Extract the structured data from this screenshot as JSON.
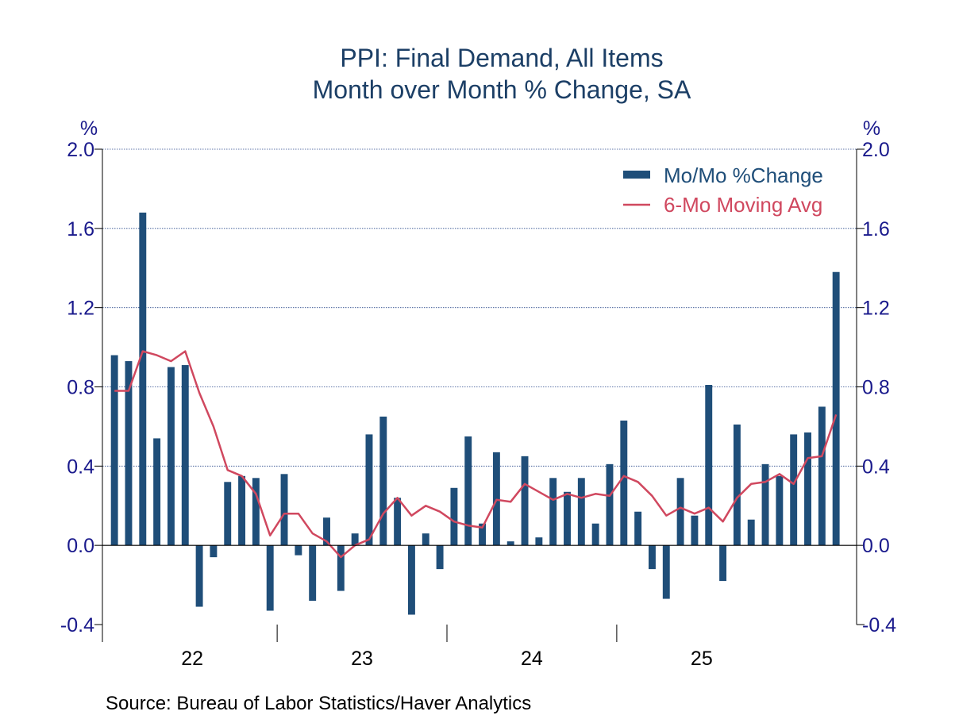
{
  "chart_data": {
    "type": "bar",
    "title": "PPI: Final Demand, All Items",
    "subtitle": "Month over Month % Change, SA",
    "y_unit_left": "%",
    "y_unit_right": "%",
    "ylim": [
      -0.4,
      2.0
    ],
    "yticks": [
      "2.0",
      "1.6",
      "1.2",
      "0.8",
      "0.4",
      "0.0",
      "-0.4"
    ],
    "ytick_values": [
      2.0,
      1.6,
      1.2,
      0.8,
      0.4,
      0.0,
      -0.4
    ],
    "xtick_labels": [
      "22",
      "23",
      "24",
      "25"
    ],
    "grid": true,
    "legend_position": "top-right",
    "colors": {
      "bars": "#1f4e79",
      "line": "#d0485f",
      "text": "#1a1a8c",
      "title": "#1c3f66",
      "grid": "#2b4a8c"
    },
    "series": [
      {
        "name": "Mo/Mo %Change",
        "type": "bar",
        "values": [
          0.96,
          0.93,
          1.68,
          0.54,
          0.9,
          0.91,
          -0.31,
          -0.06,
          0.32,
          0.35,
          0.34,
          -0.33,
          0.36,
          -0.05,
          -0.28,
          0.14,
          -0.23,
          0.06,
          0.56,
          0.65,
          0.24,
          -0.35,
          0.06,
          -0.12,
          0.29,
          0.55,
          0.11,
          0.47,
          0.02,
          0.45,
          0.04,
          0.34,
          0.27,
          0.34,
          0.11,
          0.41,
          0.63,
          0.17,
          -0.12,
          -0.27,
          0.34,
          0.15,
          0.81,
          -0.18,
          0.61,
          0.13,
          0.41,
          0.35,
          0.56,
          0.57,
          0.7,
          1.38
        ]
      },
      {
        "name": "6-Mo Moving Avg",
        "type": "line",
        "values": [
          0.78,
          0.78,
          0.98,
          0.96,
          0.93,
          0.98,
          0.77,
          0.6,
          0.38,
          0.35,
          0.26,
          0.05,
          0.16,
          0.16,
          0.06,
          0.02,
          -0.06,
          0.0,
          0.03,
          0.16,
          0.24,
          0.15,
          0.2,
          0.17,
          0.12,
          0.1,
          0.09,
          0.23,
          0.22,
          0.31,
          0.27,
          0.23,
          0.26,
          0.24,
          0.26,
          0.25,
          0.35,
          0.32,
          0.25,
          0.15,
          0.19,
          0.16,
          0.19,
          0.12,
          0.24,
          0.31,
          0.32,
          0.36,
          0.31,
          0.44,
          0.45,
          0.66
        ]
      }
    ]
  },
  "source": "Source:  Bureau of Labor Statistics/Haver Analytics"
}
